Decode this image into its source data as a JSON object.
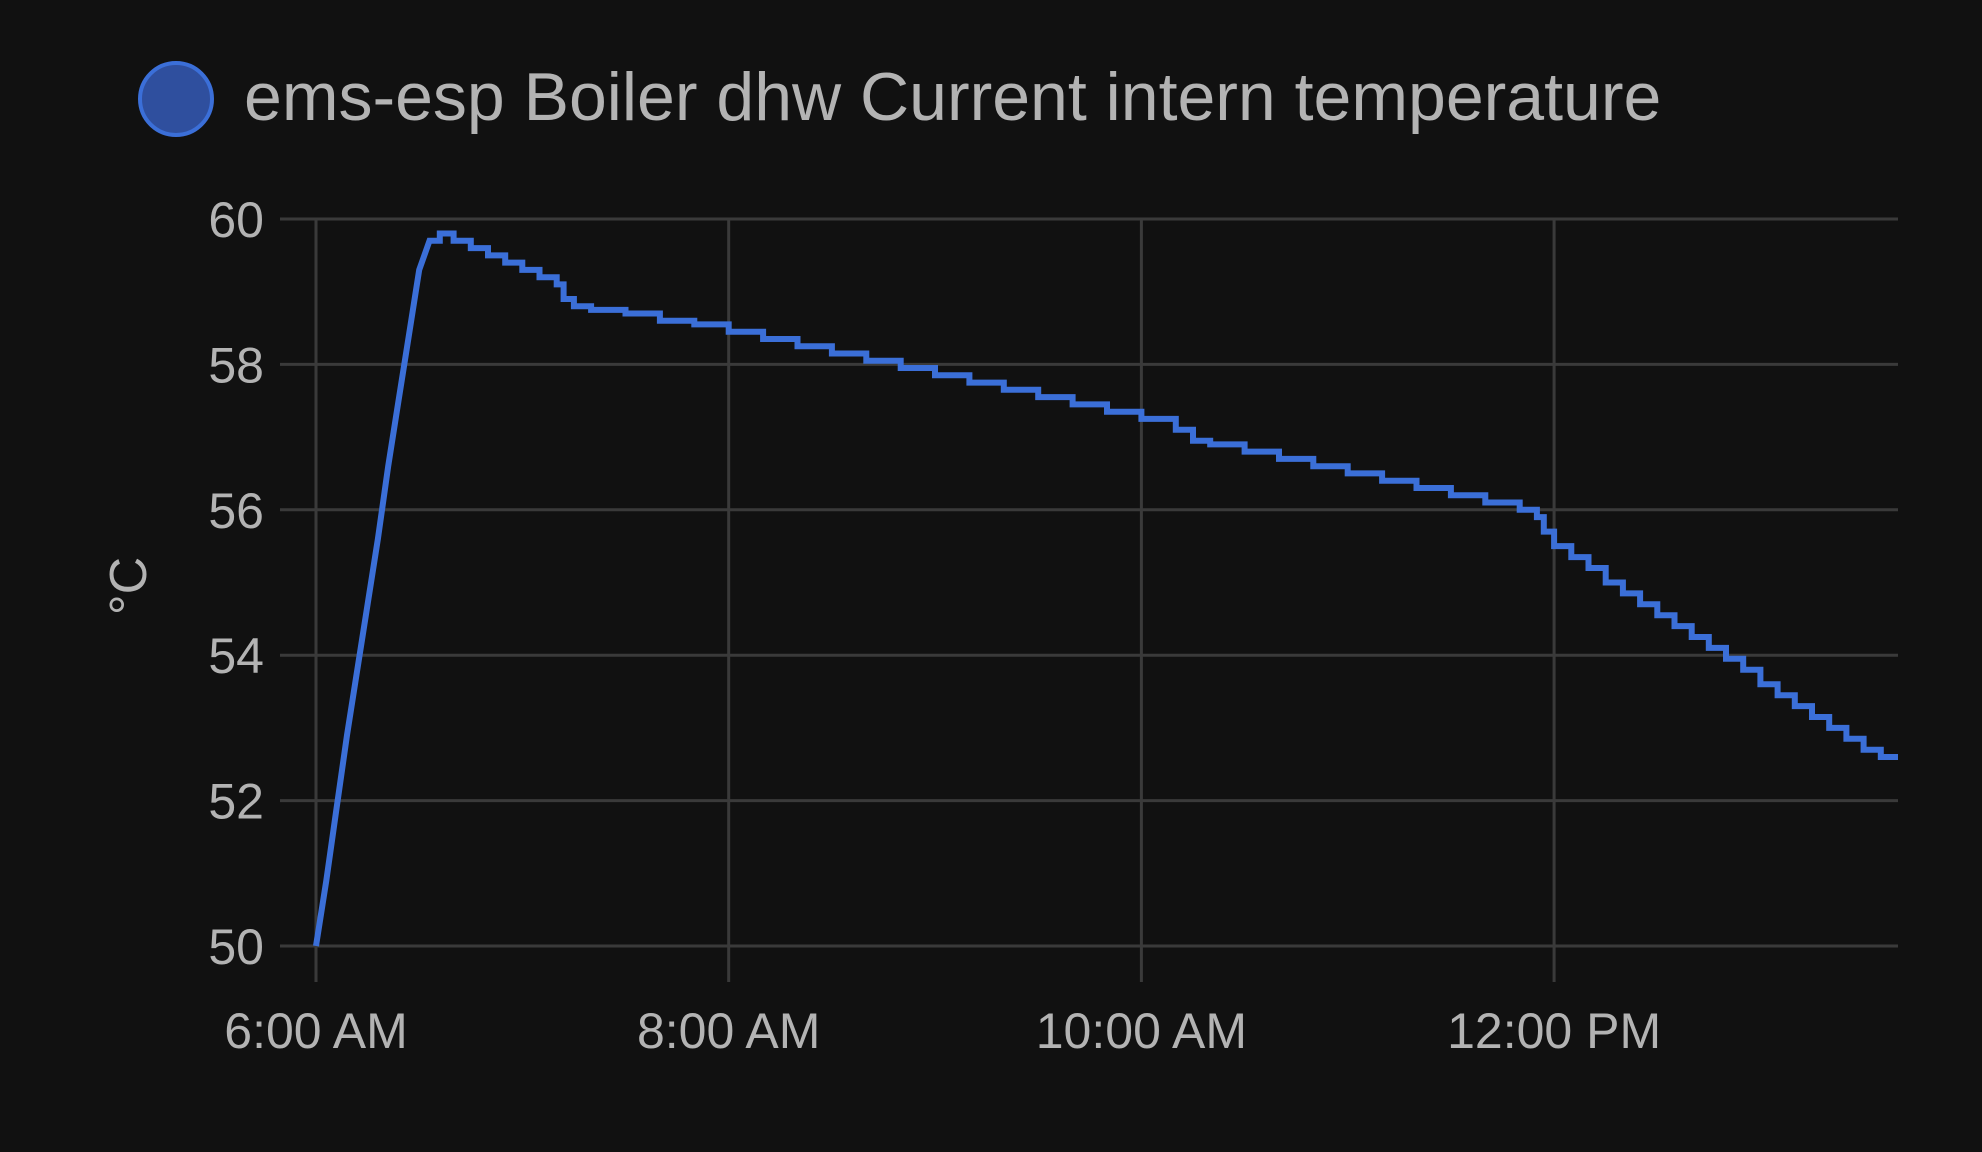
{
  "chart_data": {
    "type": "line",
    "title": "",
    "legend": {
      "position": "top",
      "entries": [
        {
          "name": "ems-esp Boiler dhw Current intern temperature",
          "color": "#3b6fd8"
        }
      ]
    },
    "ylabel": "°C",
    "xlabel": "",
    "ylim": [
      50,
      60
    ],
    "yticks": [
      {
        "value": 50,
        "label": "50"
      },
      {
        "value": 52,
        "label": "52"
      },
      {
        "value": 54,
        "label": "54"
      },
      {
        "value": 56,
        "label": "56"
      },
      {
        "value": 58,
        "label": "58"
      },
      {
        "value": 60,
        "label": "60"
      }
    ],
    "xlim": [
      "06:00",
      "13:40"
    ],
    "xticks": [
      {
        "value": "06:00",
        "label": "6:00 AM"
      },
      {
        "value": "08:00",
        "label": "8:00 AM"
      },
      {
        "value": "10:00",
        "label": "10:00 AM"
      },
      {
        "value": "12:00",
        "label": "12:00 PM"
      }
    ],
    "grid": true,
    "series": [
      {
        "name": "ems-esp Boiler dhw Current intern temperature",
        "color": "#3b6fd8",
        "step": true,
        "points": [
          [
            "06:00",
            50.0
          ],
          [
            "06:03",
            50.9
          ],
          [
            "06:06",
            51.9
          ],
          [
            "06:09",
            52.9
          ],
          [
            "06:12",
            53.8
          ],
          [
            "06:15",
            54.7
          ],
          [
            "06:18",
            55.6
          ],
          [
            "06:21",
            56.6
          ],
          [
            "06:24",
            57.5
          ],
          [
            "06:27",
            58.4
          ],
          [
            "06:30",
            59.3
          ],
          [
            "06:33",
            59.7
          ],
          [
            "06:36",
            59.8
          ],
          [
            "06:40",
            59.7
          ],
          [
            "06:45",
            59.6
          ],
          [
            "06:50",
            59.5
          ],
          [
            "06:55",
            59.4
          ],
          [
            "07:00",
            59.3
          ],
          [
            "07:05",
            59.2
          ],
          [
            "07:10",
            59.1
          ],
          [
            "07:12",
            58.9
          ],
          [
            "07:15",
            58.8
          ],
          [
            "07:20",
            58.75
          ],
          [
            "07:30",
            58.7
          ],
          [
            "07:40",
            58.6
          ],
          [
            "07:50",
            58.55
          ],
          [
            "08:00",
            58.45
          ],
          [
            "08:10",
            58.35
          ],
          [
            "08:20",
            58.25
          ],
          [
            "08:30",
            58.15
          ],
          [
            "08:40",
            58.05
          ],
          [
            "08:50",
            57.95
          ],
          [
            "09:00",
            57.85
          ],
          [
            "09:10",
            57.75
          ],
          [
            "09:20",
            57.65
          ],
          [
            "09:30",
            57.55
          ],
          [
            "09:40",
            57.45
          ],
          [
            "09:50",
            57.35
          ],
          [
            "10:00",
            57.25
          ],
          [
            "10:10",
            57.1
          ],
          [
            "10:15",
            56.95
          ],
          [
            "10:20",
            56.9
          ],
          [
            "10:30",
            56.8
          ],
          [
            "10:40",
            56.7
          ],
          [
            "10:50",
            56.6
          ],
          [
            "11:00",
            56.5
          ],
          [
            "11:10",
            56.4
          ],
          [
            "11:20",
            56.3
          ],
          [
            "11:30",
            56.2
          ],
          [
            "11:40",
            56.1
          ],
          [
            "11:50",
            56.0
          ],
          [
            "11:55",
            55.9
          ],
          [
            "11:57",
            55.7
          ],
          [
            "12:00",
            55.5
          ],
          [
            "12:05",
            55.35
          ],
          [
            "12:10",
            55.2
          ],
          [
            "12:15",
            55.0
          ],
          [
            "12:20",
            54.85
          ],
          [
            "12:25",
            54.7
          ],
          [
            "12:30",
            54.55
          ],
          [
            "12:35",
            54.4
          ],
          [
            "12:40",
            54.25
          ],
          [
            "12:45",
            54.1
          ],
          [
            "12:50",
            53.95
          ],
          [
            "12:55",
            53.8
          ],
          [
            "13:00",
            53.6
          ],
          [
            "13:05",
            53.45
          ],
          [
            "13:10",
            53.3
          ],
          [
            "13:15",
            53.15
          ],
          [
            "13:20",
            53.0
          ],
          [
            "13:25",
            52.85
          ],
          [
            "13:30",
            52.7
          ],
          [
            "13:35",
            52.6
          ],
          [
            "13:40",
            52.6
          ]
        ]
      }
    ]
  },
  "colors": {
    "background": "#111111",
    "grid": "#3a3a3a",
    "text": "#b3b3b3",
    "series": "#3b6fd8"
  }
}
